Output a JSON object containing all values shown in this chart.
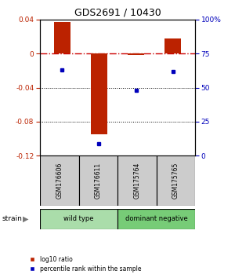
{
  "title": "GDS2691 / 10430",
  "samples": [
    "GSM176606",
    "GSM176611",
    "GSM175764",
    "GSM175765"
  ],
  "log10_ratio": [
    0.037,
    -0.095,
    -0.002,
    0.018
  ],
  "percentile_rank": [
    63,
    9,
    48,
    62
  ],
  "groups": [
    {
      "label": "wild type",
      "samples": [
        0,
        1
      ],
      "color": "#aaddaa"
    },
    {
      "label": "dominant negative",
      "samples": [
        2,
        3
      ],
      "color": "#77cc77"
    }
  ],
  "ylim_left": [
    -0.12,
    0.04
  ],
  "ylim_right": [
    0,
    100
  ],
  "yticks_left": [
    -0.12,
    -0.08,
    -0.04,
    0.0,
    0.04
  ],
  "yticks_right": [
    0,
    25,
    50,
    75,
    100
  ],
  "bar_color": "#BB2200",
  "dot_color": "#0000BB",
  "zero_line_color": "#CC0000",
  "bg_color": "#FFFFFF",
  "sample_box_color": "#CCCCCC",
  "legend_items": [
    "log10 ratio",
    "percentile rank within the sample"
  ]
}
